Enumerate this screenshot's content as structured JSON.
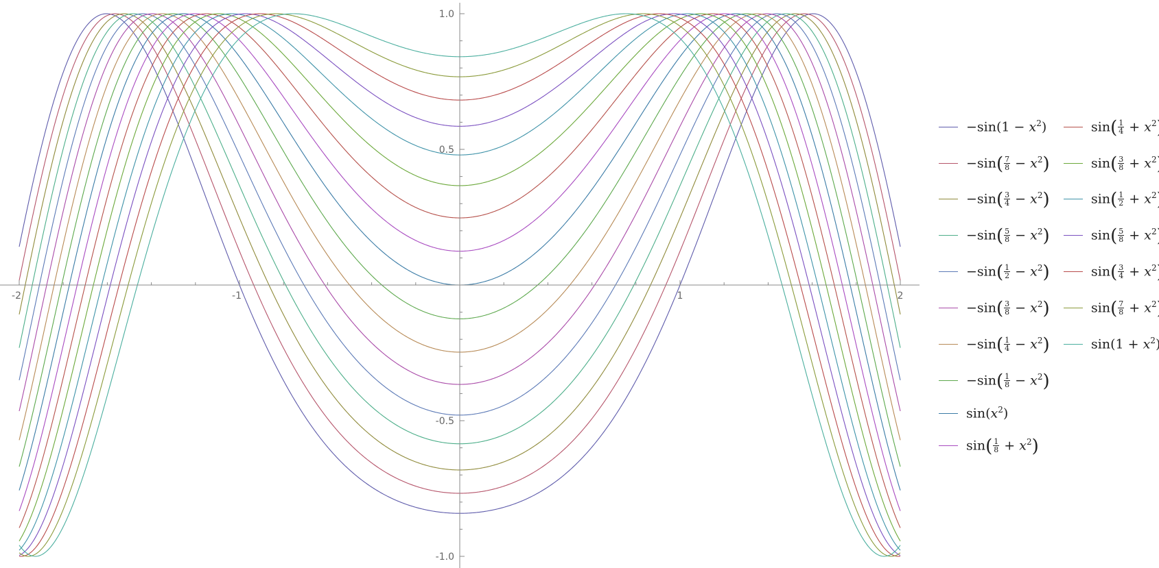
{
  "chart_data": {
    "type": "line",
    "x_range": [
      -2,
      2
    ],
    "xlim": [
      -2.05,
      2.1
    ],
    "ylim": [
      -1.03,
      1.04
    ],
    "x_ticks": [
      -2,
      -1,
      1,
      2
    ],
    "x_tick_labels": [
      "-2",
      "-1",
      "1",
      "2"
    ],
    "y_ticks": [
      -1.0,
      -0.5,
      0.5,
      1.0
    ],
    "y_tick_labels": [
      "-1.0",
      "-0.5",
      "0.5",
      "1.0"
    ],
    "grid": false,
    "legend_position": "right",
    "series_function": "sin(x^2 + phase)",
    "series": [
      {
        "name": "-sin(1 - x^2)",
        "phase": -1.0,
        "color": "#5E5BAB"
      },
      {
        "name": "-sin(7/8 - x^2)",
        "phase": -0.875,
        "color": "#B5546A"
      },
      {
        "name": "-sin(3/4 - x^2)",
        "phase": -0.75,
        "color": "#8F8A3A"
      },
      {
        "name": "-sin(5/8 - x^2)",
        "phase": -0.625,
        "color": "#4CAE89"
      },
      {
        "name": "-sin(1/2 - x^2)",
        "phase": -0.5,
        "color": "#5B79B6"
      },
      {
        "name": "-sin(3/8 - x^2)",
        "phase": -0.375,
        "color": "#A94AA8"
      },
      {
        "name": "-sin(1/4 - x^2)",
        "phase": -0.25,
        "color": "#B78A56"
      },
      {
        "name": "-sin(1/8 - x^2)",
        "phase": -0.125,
        "color": "#5CA84C"
      },
      {
        "name": "sin(x^2)",
        "phase": 0.0,
        "color": "#3A7BA6"
      },
      {
        "name": "sin(1/8 + x^2)",
        "phase": 0.125,
        "color": "#A84AC0"
      },
      {
        "name": "sin(1/4 + x^2)",
        "phase": 0.25,
        "color": "#B5504A"
      },
      {
        "name": "sin(3/8 + x^2)",
        "phase": 0.375,
        "color": "#6BA83A"
      },
      {
        "name": "sin(1/2 + x^2)",
        "phase": 0.5,
        "color": "#3E92A8"
      },
      {
        "name": "sin(5/8 + x^2)",
        "phase": 0.625,
        "color": "#7A4FC0"
      },
      {
        "name": "sin(3/4 + x^2)",
        "phase": 0.75,
        "color": "#B84A4A"
      },
      {
        "name": "sin(7/8 + x^2)",
        "phase": 0.875,
        "color": "#8A9A3A"
      },
      {
        "name": "sin(1 + x^2)",
        "phase": 1.0,
        "color": "#4AAE9E"
      }
    ]
  },
  "legend": [
    {
      "lead": "−sin(",
      "frac": null,
      "lead_plain": "1 − x",
      "tail": ")"
    },
    {
      "lead": "−sin",
      "frac": [
        "7",
        "8"
      ],
      "op": "− x"
    },
    {
      "lead": "−sin",
      "frac": [
        "3",
        "4"
      ],
      "op": "− x"
    },
    {
      "lead": "−sin",
      "frac": [
        "5",
        "8"
      ],
      "op": "− x"
    },
    {
      "lead": "−sin",
      "frac": [
        "1",
        "2"
      ],
      "op": "− x"
    },
    {
      "lead": "−sin",
      "frac": [
        "3",
        "8"
      ],
      "op": "− x"
    },
    {
      "lead": "−sin",
      "frac": [
        "1",
        "4"
      ],
      "op": "− x"
    },
    {
      "lead": "−sin",
      "frac": [
        "1",
        "8"
      ],
      "op": "− x"
    },
    {
      "lead": "sin(",
      "frac": null,
      "lead_plain": "x",
      "tail": ")"
    },
    {
      "lead": "sin",
      "frac": [
        "1",
        "8"
      ],
      "op": "+ x"
    },
    {
      "lead": "sin",
      "frac": [
        "1",
        "4"
      ],
      "op": "+ x"
    },
    {
      "lead": "sin",
      "frac": [
        "3",
        "8"
      ],
      "op": "+ x"
    },
    {
      "lead": "sin",
      "frac": [
        "1",
        "2"
      ],
      "op": "+ x"
    },
    {
      "lead": "sin",
      "frac": [
        "5",
        "8"
      ],
      "op": "+ x"
    },
    {
      "lead": "sin",
      "frac": [
        "3",
        "4"
      ],
      "op": "+ x"
    },
    {
      "lead": "sin",
      "frac": [
        "7",
        "8"
      ],
      "op": "+ x"
    },
    {
      "lead": "sin(",
      "frac": null,
      "lead_plain": "1 + x",
      "tail": ")"
    }
  ],
  "exponent": "2"
}
